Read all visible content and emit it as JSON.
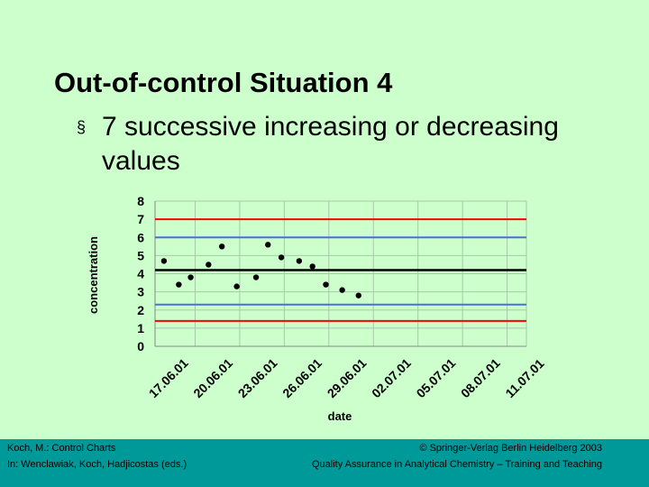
{
  "slide": {
    "title": "Out-of-control Situation 4",
    "bullet_symbol": "§",
    "bullet": "7 successive increasing or decreasing values"
  },
  "footer": {
    "left_line1": "Koch, M.: Control Charts",
    "left_line2": "In: Wenclawiak, Koch, Hadjicostas (eds.)",
    "right_line1": "© Springer-Verlag Berlin Heidelberg 2003",
    "right_line2": "Quality Assurance in Analytical Chemistry – Training and Teaching"
  },
  "colors": {
    "background": "#ccffcc",
    "footer": "#009999",
    "red_limit": "#ff0000",
    "blue_limit": "#4a6fe0",
    "center_line": "#000000",
    "grid": "#a8c8a8"
  },
  "chart_data": {
    "type": "scatter",
    "xlabel": "date",
    "ylabel": "concentration",
    "ylim": [
      0,
      8
    ],
    "yticks": [
      0,
      1,
      2,
      3,
      4,
      5,
      6,
      7,
      8
    ],
    "xlim": [
      17.3,
      42.3
    ],
    "xticks": [
      {
        "x": 17,
        "label": "17.06.01"
      },
      {
        "x": 20,
        "label": "20.06.01"
      },
      {
        "x": 23,
        "label": "23.06.01"
      },
      {
        "x": 26,
        "label": "26.06.01"
      },
      {
        "x": 29,
        "label": "29.06.01"
      },
      {
        "x": 32,
        "label": "02.07.01"
      },
      {
        "x": 35,
        "label": "05.07.01"
      },
      {
        "x": 38,
        "label": "08.07.01"
      },
      {
        "x": 41,
        "label": "11.07.01"
      }
    ],
    "reference_lines": [
      {
        "name": "upper action limit",
        "y": 7.0,
        "color": "#ff0000"
      },
      {
        "name": "upper warning limit",
        "y": 6.0,
        "color": "#4a6fe0"
      },
      {
        "name": "center line",
        "y": 4.2,
        "color": "#000000"
      },
      {
        "name": "lower warning limit",
        "y": 2.3,
        "color": "#4a6fe0"
      },
      {
        "name": "lower action limit",
        "y": 1.4,
        "color": "#ff0000"
      }
    ],
    "points": [
      {
        "x": 17.9,
        "y": 4.7
      },
      {
        "x": 18.9,
        "y": 3.4
      },
      {
        "x": 19.7,
        "y": 3.8
      },
      {
        "x": 20.9,
        "y": 4.5
      },
      {
        "x": 21.8,
        "y": 5.5
      },
      {
        "x": 22.8,
        "y": 3.3
      },
      {
        "x": 24.1,
        "y": 3.8
      },
      {
        "x": 24.9,
        "y": 5.6
      },
      {
        "x": 25.8,
        "y": 4.9
      },
      {
        "x": 27.0,
        "y": 4.7
      },
      {
        "x": 27.9,
        "y": 4.4
      },
      {
        "x": 28.8,
        "y": 3.4
      },
      {
        "x": 29.9,
        "y": 3.1
      },
      {
        "x": 31.0,
        "y": 2.8
      }
    ]
  }
}
